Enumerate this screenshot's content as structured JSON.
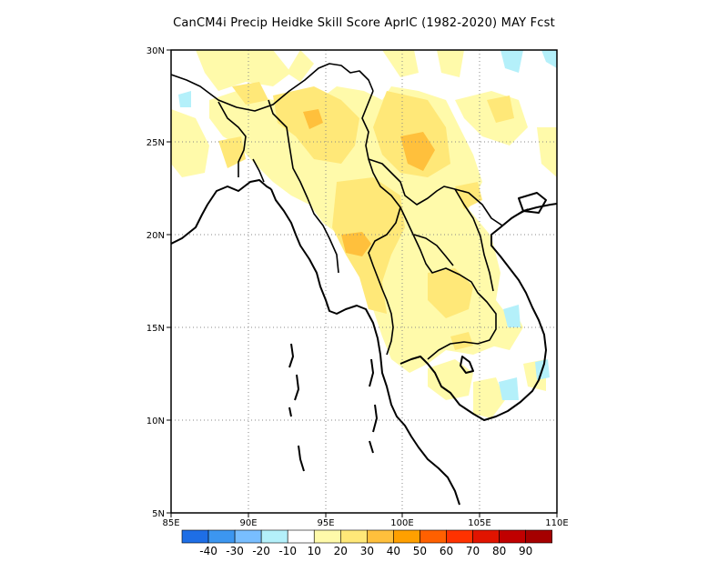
{
  "title": "CanCM4i Precip Heidke Skill Score AprIC (1982-2020) MAY Fcst",
  "map": {
    "lon_range": [
      85,
      110
    ],
    "lat_range": [
      5,
      30
    ],
    "x_ticks": [
      "85E",
      "90E",
      "95E",
      "100E",
      "105E",
      "110E"
    ],
    "y_ticks": [
      "5N",
      "10N",
      "15N",
      "20N",
      "25N",
      "30N"
    ],
    "gridlines": "dotted",
    "coastline_color": "#000000"
  },
  "colorbar": {
    "labels": [
      "-40",
      "-30",
      "-20",
      "-10",
      "10",
      "20",
      "30",
      "40",
      "50",
      "60",
      "70",
      "80",
      "90"
    ],
    "colors": [
      "#1e6ee6",
      "#3c96f0",
      "#78beff",
      "#b4f0fa",
      "#ffffff",
      "#fffaaa",
      "#ffe878",
      "#ffc03c",
      "#ffa000",
      "#ff6000",
      "#ff3200",
      "#e11400",
      "#c00000",
      "#a50000"
    ]
  }
}
